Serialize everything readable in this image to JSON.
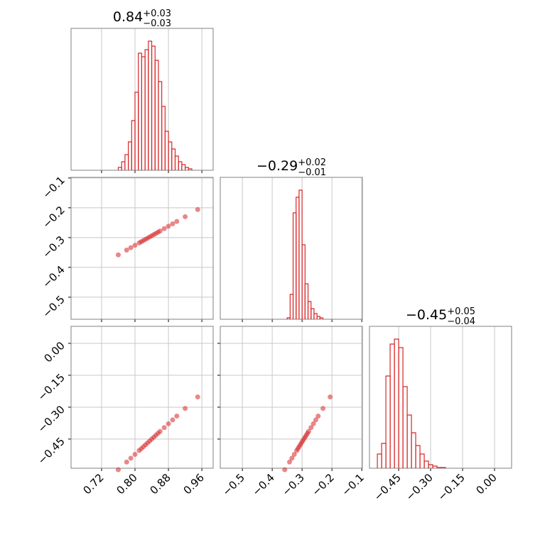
{
  "chart_data": {
    "type": "corner",
    "color": "#d62728",
    "grid": true,
    "params": [
      {
        "title": "0.84",
        "plus": "+0.03",
        "minus": "−0.03",
        "lim": [
          0.647,
          0.987
        ],
        "ticks": [
          0.72,
          {
            "value": 0.8,
            "label": "0.80"
          },
          0.88,
          0.96
        ]
      },
      {
        "title": "−0.29",
        "plus": "+0.02",
        "minus": "−0.01",
        "lim": [
          -0.574,
          -0.098
        ],
        "ticks": [
          {
            "value": -0.5,
            "label": "−0.5"
          },
          {
            "value": -0.4,
            "label": "−0.4"
          },
          {
            "value": -0.3,
            "label": "−0.3"
          },
          {
            "value": -0.2,
            "label": "−0.2"
          },
          {
            "value": -0.1,
            "label": "−0.1"
          }
        ]
      },
      {
        "title": "−0.45",
        "plus": "+0.05",
        "minus": "−0.04",
        "lim": [
          -0.587,
          0.08
        ],
        "ticks": [
          {
            "value": -0.45,
            "label": "−0.45"
          },
          {
            "value": -0.3,
            "label": "−0.30"
          },
          {
            "value": -0.15,
            "label": "−0.15"
          },
          {
            "value": 0,
            "label": "0.00"
          }
        ]
      }
    ],
    "hist": [
      {
        "ylim": [
          0,
          200
        ],
        "bins": [
          0.76,
          0.768,
          0.776,
          0.784,
          0.792,
          0.8,
          0.808,
          0.816,
          0.824,
          0.832,
          0.84,
          0.848,
          0.856,
          0.864,
          0.872,
          0.88,
          0.888,
          0.896,
          0.904,
          0.912,
          0.92,
          0.928,
          0.936
        ],
        "counts": [
          4,
          12,
          22,
          40,
          70,
          110,
          165,
          160,
          170,
          182,
          175,
          155,
          125,
          90,
          55,
          40,
          30,
          20,
          12,
          8,
          4,
          2
        ]
      },
      {
        "ylim": [
          0,
          200
        ],
        "bins": [
          -0.35,
          -0.34,
          -0.33,
          -0.32,
          -0.31,
          -0.3,
          -0.29,
          -0.28,
          -0.27,
          -0.26,
          -0.25,
          -0.24,
          -0.23
        ],
        "counts": [
          2,
          35,
          150,
          172,
          182,
          105,
          50,
          25,
          15,
          8,
          4,
          2
        ]
      },
      {
        "ylim": [
          0,
          200
        ],
        "bins": [
          -0.55,
          -0.53,
          -0.51,
          -0.49,
          -0.47,
          -0.45,
          -0.43,
          -0.41,
          -0.39,
          -0.37,
          -0.35,
          -0.33,
          -0.31,
          -0.29,
          -0.27,
          -0.25,
          -0.23
        ],
        "counts": [
          20,
          35,
          130,
          175,
          182,
          170,
          115,
          75,
          50,
          32,
          20,
          10,
          5,
          3,
          1,
          1
        ]
      }
    ],
    "samples": [
      [
        0.76,
        0.78,
        0.79,
        0.8,
        0.81,
        0.815,
        0.82,
        0.825,
        0.83,
        0.835,
        0.84,
        0.845,
        0.85,
        0.855,
        0.86,
        0.87,
        0.88,
        0.89,
        0.9,
        0.92,
        0.95
      ],
      [
        -0.358,
        -0.342,
        -0.334,
        -0.326,
        -0.318,
        -0.314,
        -0.31,
        -0.306,
        -0.302,
        -0.298,
        -0.294,
        -0.29,
        -0.286,
        -0.282,
        -0.278,
        -0.27,
        -0.262,
        -0.254,
        -0.246,
        -0.23,
        -0.206
      ],
      [
        -0.594,
        -0.558,
        -0.54,
        -0.522,
        -0.504,
        -0.495,
        -0.486,
        -0.477,
        -0.468,
        -0.459,
        -0.45,
        -0.441,
        -0.432,
        -0.423,
        -0.414,
        -0.396,
        -0.378,
        -0.36,
        -0.342,
        -0.306,
        -0.252
      ]
    ]
  }
}
